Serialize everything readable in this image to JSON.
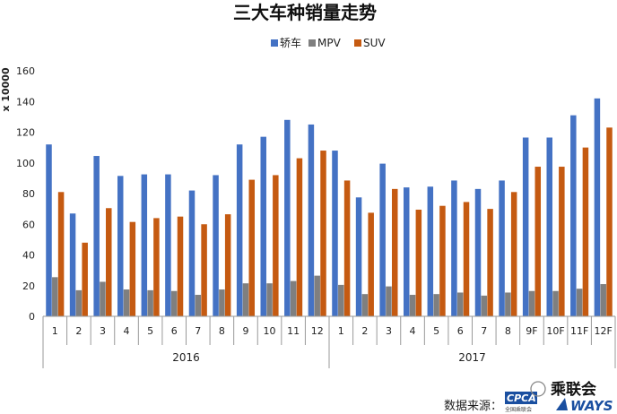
{
  "chart_data": {
    "type": "bar",
    "title": "三大车种销量走势",
    "ylabel": "x 10000",
    "ylim": [
      0,
      160
    ],
    "yticks": [
      0,
      20,
      40,
      60,
      80,
      100,
      120,
      140,
      160
    ],
    "legend_position": "top-center",
    "grid": false,
    "categories": [
      "1",
      "2",
      "3",
      "4",
      "5",
      "6",
      "7",
      "8",
      "9",
      "10",
      "11",
      "12",
      "1",
      "2",
      "3",
      "4",
      "5",
      "6",
      "7",
      "8",
      "9F",
      "10F",
      "11F",
      "12F"
    ],
    "groups": [
      {
        "label": "2016",
        "start": 0,
        "end": 12
      },
      {
        "label": "2017",
        "start": 12,
        "end": 24
      }
    ],
    "series": [
      {
        "name": "轿车",
        "color": "#4472C4",
        "values": [
          112,
          67,
          104.5,
          91.5,
          92.5,
          92.5,
          82,
          92,
          112,
          117,
          128,
          125,
          108,
          77.5,
          99.5,
          84,
          84.5,
          88.5,
          83,
          88.5,
          116.5,
          116.5,
          131,
          142
        ]
      },
      {
        "name": "MPV",
        "color": "#7F7F7F",
        "values": [
          25.5,
          17,
          22.5,
          17.5,
          17,
          16.5,
          14,
          17.5,
          21.5,
          21.5,
          23,
          26.5,
          20.5,
          14.5,
          19.5,
          14,
          14.5,
          15.5,
          13.5,
          15.5,
          16.5,
          16.5,
          18,
          21
        ]
      },
      {
        "name": "SUV",
        "color": "#C55A11",
        "values": [
          81,
          48,
          70.5,
          61.5,
          64,
          65,
          60,
          66.5,
          89,
          92,
          103,
          108,
          88.5,
          67.5,
          83,
          69.5,
          72,
          74.5,
          70,
          81,
          97.5,
          97.5,
          110,
          123
        ]
      }
    ]
  },
  "footer": {
    "source_label": "数据来源：",
    "logo_cpca": "CPCA",
    "logo_cpca_sub": "全国乘联会",
    "logo_ways": "WAYS",
    "wechat_name": "乘联会"
  }
}
